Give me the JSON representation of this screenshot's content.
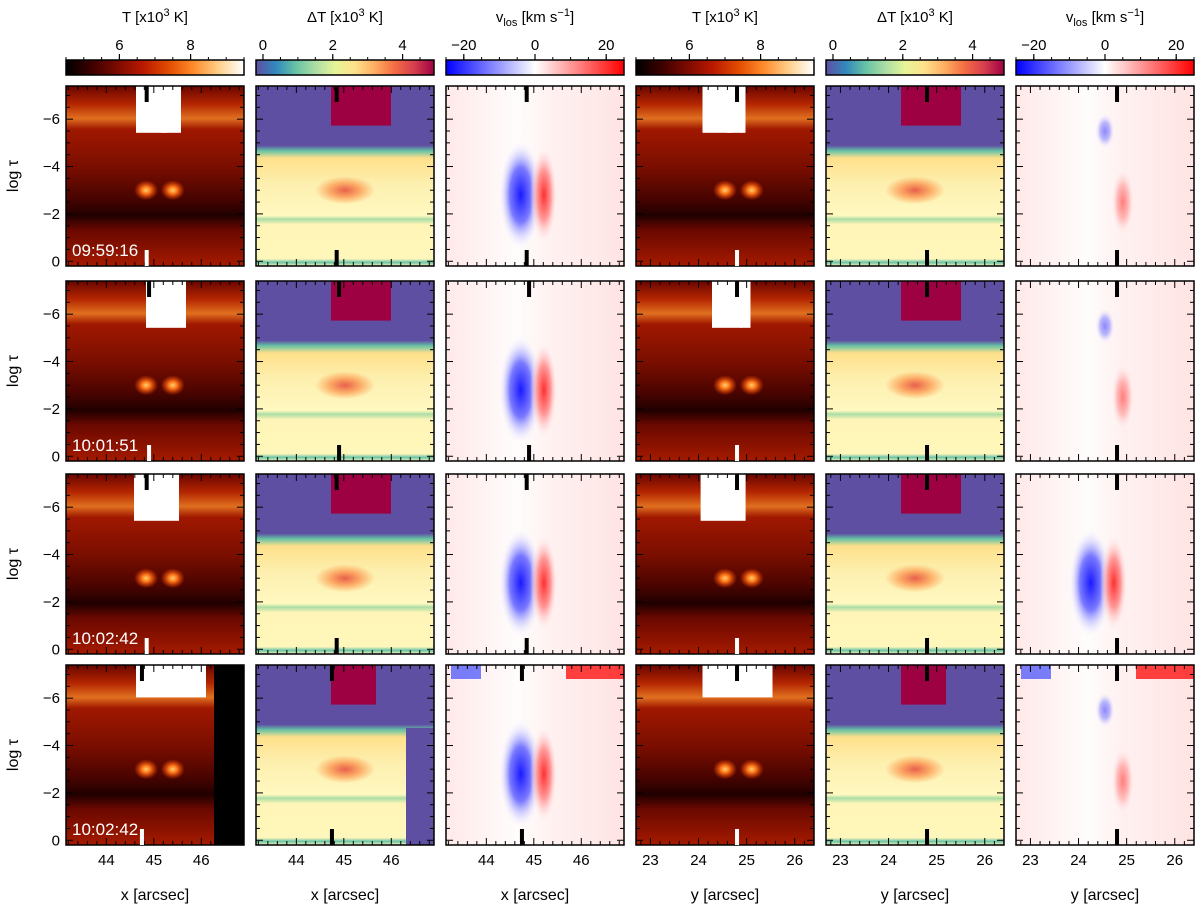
{
  "figure": {
    "column_titles": [
      {
        "main": "T [x10",
        "sup": "3",
        "rest": " K]"
      },
      {
        "main": "ΔT [x10",
        "sup": "3",
        "rest": " K]"
      },
      {
        "main": "v",
        "sub": "los",
        "rest": " [km s",
        "sup2": "−1",
        "end": "]"
      },
      {
        "main": "T [x10",
        "sup": "3",
        "rest": " K]"
      },
      {
        "main": "ΔT [x10",
        "sup": "3",
        "rest": " K]"
      },
      {
        "main": "v",
        "sub": "los",
        "rest": " [km s",
        "sup2": "−1",
        "end": "]"
      }
    ],
    "timestamps": [
      "09:59:16",
      "10:01:51",
      "10:02:42",
      "10:02:42"
    ],
    "y_axis_label": "log τ",
    "x_axis_labels": [
      "x [arcsec]",
      "x [arcsec]",
      "x [arcsec]",
      "y [arcsec]",
      "y [arcsec]",
      "y [arcsec]"
    ]
  },
  "colors": {
    "temperature_map": [
      "#000000",
      "#3c0000",
      "#7a0a00",
      "#b81800",
      "#e04a00",
      "#ff8a2a",
      "#ffcf8a",
      "#ffffff"
    ],
    "delta_t_map": [
      "#5e4fa2",
      "#3288bd",
      "#66c2a5",
      "#abdda4",
      "#e6f598",
      "#fee08b",
      "#fdae61",
      "#f46d43",
      "#d53e4f",
      "#9e0142"
    ],
    "velocity_map": [
      "#0000ff",
      "#ffffff",
      "#ff0000"
    ],
    "marker": "#000000",
    "timestamp_text": "#ffffff"
  },
  "chart_data": [
    {
      "type": "heatmap",
      "quantity": "T",
      "colorbar": {
        "range": [
          4.5,
          9.5
        ],
        "ticks": [
          6,
          8
        ]
      }
    },
    {
      "type": "heatmap",
      "quantity": "ΔT",
      "colorbar": {
        "range": [
          -0.2,
          4.9
        ],
        "ticks": [
          0,
          2,
          4
        ]
      }
    },
    {
      "type": "heatmap",
      "quantity": "v_los",
      "colorbar": {
        "range": [
          -25,
          25
        ],
        "ticks": [
          -20,
          0,
          20
        ]
      }
    },
    {
      "type": "heatmap",
      "quantity": "T",
      "colorbar": {
        "range": [
          4.5,
          9.5
        ],
        "ticks": [
          6,
          8
        ]
      }
    },
    {
      "type": "heatmap",
      "quantity": "ΔT",
      "colorbar": {
        "range": [
          -0.2,
          4.9
        ],
        "ticks": [
          0,
          2,
          4
        ]
      }
    },
    {
      "type": "heatmap",
      "quantity": "v_los",
      "colorbar": {
        "range": [
          -25,
          25
        ],
        "ticks": [
          -20,
          0,
          20
        ]
      }
    },
    {
      "axes": {
        "x_cols_1_3": {
          "range": [
            43.15,
            46.9
          ],
          "ticks": [
            44,
            45,
            46
          ],
          "tick_labels": [
            "44",
            "45",
            "46"
          ]
        },
        "y_cols_4_6": {
          "range": [
            22.7,
            26.4
          ],
          "ticks": [
            23,
            24,
            25,
            26
          ],
          "tick_labels": [
            "23",
            "24",
            "25",
            "26"
          ]
        },
        "log_tau": {
          "range": [
            0.2,
            -7.4
          ],
          "ticks": [
            0,
            -2,
            -4,
            -6
          ],
          "tick_labels": [
            "0",
            "−2",
            "−4",
            "−6"
          ]
        }
      },
      "markers": {
        "x_position": [
          44.85,
          44.9,
          44.85,
          44.75
        ],
        "y_position": [
          24.8,
          24.8,
          24.8,
          24.8
        ]
      }
    }
  ]
}
